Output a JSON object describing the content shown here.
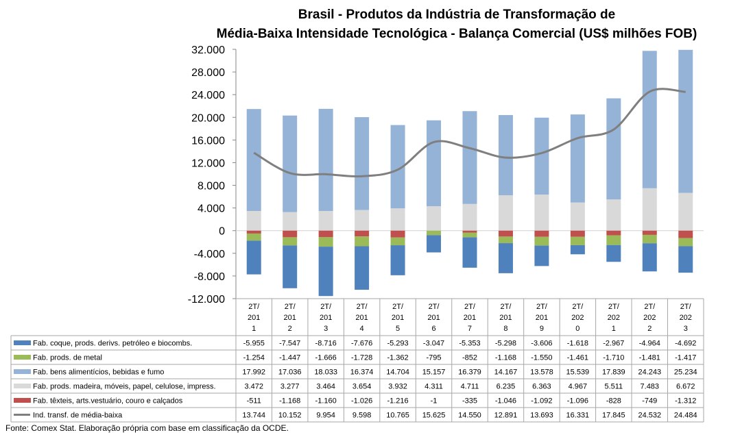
{
  "chart_data": {
    "type": "bar",
    "stacked": true,
    "title": [
      "Brasil - Produtos da Indústria de Transformação de",
      "Média-Baixa Intensidade Tecnológica - Balança Comercial (US$ milhões FOB)"
    ],
    "categories": [
      [
        "2T/",
        "201",
        "1"
      ],
      [
        "2T/",
        "201",
        "2"
      ],
      [
        "2T/",
        "201",
        "3"
      ],
      [
        "2T/",
        "201",
        "4"
      ],
      [
        "2T/",
        "201",
        "5"
      ],
      [
        "2T/",
        "201",
        "6"
      ],
      [
        "2T/",
        "201",
        "7"
      ],
      [
        "2T/",
        "201",
        "8"
      ],
      [
        "2T/",
        "201",
        "9"
      ],
      [
        "2T/",
        "202",
        "0"
      ],
      [
        "2T/",
        "202",
        "1"
      ],
      [
        "2T/",
        "202",
        "2"
      ],
      [
        "2T/",
        "202",
        "3"
      ]
    ],
    "ylim": [
      -12000,
      32000
    ],
    "yticks": [
      -12000,
      -8000,
      -4000,
      0,
      4000,
      8000,
      12000,
      16000,
      20000,
      24000,
      28000,
      32000
    ],
    "ytick_labels": [
      "-12.000",
      "-8.000",
      "-4.000",
      "0",
      "4.000",
      "8.000",
      "12.000",
      "16.000",
      "20.000",
      "24.000",
      "28.000",
      "32.000"
    ],
    "grid": false,
    "legend": "data-table",
    "series": [
      {
        "name": "Fab. coque, prods. derivs. petróleo e biocombs.",
        "kind": "bar",
        "color": "#4f81bd",
        "values": [
          -5955,
          -7547,
          -8716,
          -7676,
          -5293,
          -3047,
          -5353,
          -5298,
          -3606,
          -1618,
          -2967,
          -4964,
          -4692
        ],
        "labels": [
          "-5.955",
          "-7.547",
          "-8.716",
          "-7.676",
          "-5.293",
          "-3.047",
          "-5.353",
          "-5.298",
          "-3.606",
          "-1.618",
          "-2.967",
          "-4.964",
          "-4.692"
        ]
      },
      {
        "name": "Fab. prods. de metal",
        "kind": "bar",
        "color": "#9bbb59",
        "values": [
          -1254,
          -1447,
          -1666,
          -1728,
          -1362,
          -795,
          -852,
          -1168,
          -1550,
          -1461,
          -1710,
          -1481,
          -1417
        ],
        "labels": [
          "-1.254",
          "-1.447",
          "-1.666",
          "-1.728",
          "-1.362",
          "-795",
          "-852",
          "-1.168",
          "-1.550",
          "-1.461",
          "-1.710",
          "-1.481",
          "-1.417"
        ]
      },
      {
        "name": "Fab. bens alimentícios, bebidas e fumo",
        "kind": "bar",
        "color": "#95b3d7",
        "values": [
          17992,
          17036,
          18033,
          16374,
          14704,
          15157,
          16379,
          14167,
          13578,
          15539,
          17839,
          24243,
          25234
        ],
        "labels": [
          "17.992",
          "17.036",
          "18.033",
          "16.374",
          "14.704",
          "15.157",
          "16.379",
          "14.167",
          "13.578",
          "15.539",
          "17.839",
          "24.243",
          "25.234"
        ]
      },
      {
        "name": "Fab. prods. madeira, móveis, papel, celulose, impress.",
        "kind": "bar",
        "color": "#d9d9d9",
        "values": [
          3472,
          3277,
          3464,
          3654,
          3932,
          4311,
          4711,
          6235,
          6363,
          4967,
          5511,
          7483,
          6672
        ],
        "labels": [
          "3.472",
          "3.277",
          "3.464",
          "3.654",
          "3.932",
          "4.311",
          "4.711",
          "6.235",
          "6.363",
          "4.967",
          "5.511",
          "7.483",
          "6.672"
        ]
      },
      {
        "name": "Fab. têxteis, arts.vestuário, couro e calçados",
        "kind": "bar",
        "color": "#c0504d",
        "values": [
          -511,
          -1168,
          -1160,
          -1026,
          -1216,
          -1,
          -335,
          -1046,
          -1092,
          -1096,
          -828,
          -749,
          -1312
        ],
        "labels": [
          "-511",
          "-1.168",
          "-1.160",
          "-1.026",
          "-1.216",
          "-1",
          "-335",
          "-1.046",
          "-1.092",
          "-1.096",
          "-828",
          "-749",
          "-1.312"
        ]
      },
      {
        "name": "Ind. transf. de média-baixa",
        "kind": "line",
        "color": "#7f7f7f",
        "values": [
          13744,
          10152,
          9954,
          9598,
          10765,
          15625,
          14550,
          12891,
          13693,
          16331,
          17845,
          24532,
          24484
        ],
        "labels": [
          "13.744",
          "10.152",
          "9.954",
          "9.598",
          "10.765",
          "15.625",
          "14.550",
          "12.891",
          "13.693",
          "16.331",
          "17.845",
          "24.532",
          "24.484"
        ]
      }
    ],
    "stack_positive_order": [
      3,
      2
    ],
    "stack_negative_order": [
      4,
      1,
      0
    ]
  },
  "footer": {
    "source": "Fonte: Comex Stat. Elaboração própria com base em classificação da OCDE."
  }
}
